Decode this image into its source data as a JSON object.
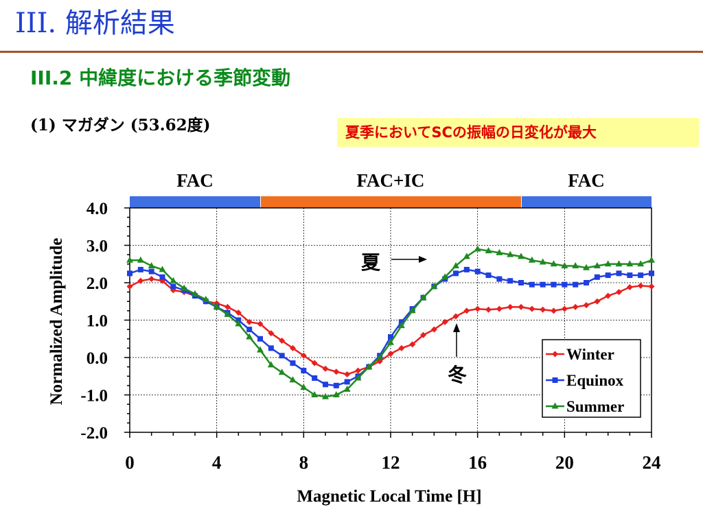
{
  "slide": {
    "title": "III. 解析結果",
    "section": "III.2 中緯度における季節変動",
    "subtitle": "(1) マガダン (53.62度)",
    "callout": "夏季においてSCの振幅の日変化が最大"
  },
  "colors": {
    "title": "#1f3fd0",
    "section": "#0a8a1a",
    "rule": "#a0522d",
    "callout_bg": "#ffff99",
    "callout_text": "#e00000",
    "fac_bar": "#3f6fe0",
    "fac_ic_bar": "#f07020"
  },
  "chart_data": {
    "type": "line",
    "xlabel": "Magnetic Local Time [H]",
    "ylabel": "Normalized Amplitude",
    "xlim": [
      0,
      24
    ],
    "ylim": [
      -2.0,
      4.0
    ],
    "xticks": [
      "0",
      "4",
      "8",
      "12",
      "16",
      "20",
      "24"
    ],
    "yticks": [
      "-2.0",
      "-1.0",
      "0.0",
      "1.0",
      "2.0",
      "3.0",
      "4.0"
    ],
    "grid": true,
    "legend_position": "bottom-right",
    "regions": [
      {
        "label": "FAC",
        "from": 0,
        "to": 6,
        "color": "#3f6fe0"
      },
      {
        "label": "FAC+IC",
        "from": 6,
        "to": 18,
        "color": "#f07020"
      },
      {
        "label": "FAC",
        "from": 18,
        "to": 24,
        "color": "#3f6fe0"
      }
    ],
    "annotations": [
      {
        "text": "夏",
        "series": "Summer",
        "arrow": "right"
      },
      {
        "text": "冬",
        "series": "Winter",
        "arrow": "up"
      }
    ],
    "x": [
      0,
      0.5,
      1,
      1.5,
      2,
      2.5,
      3,
      3.5,
      4,
      4.5,
      5,
      5.5,
      6,
      6.5,
      7,
      7.5,
      8,
      8.5,
      9,
      9.5,
      10,
      10.5,
      11,
      11.5,
      12,
      12.5,
      13,
      13.5,
      14,
      14.5,
      15,
      15.5,
      16,
      16.5,
      17,
      17.5,
      18,
      18.5,
      19,
      19.5,
      20,
      20.5,
      21,
      21.5,
      22,
      22.5,
      23,
      23.5,
      24
    ],
    "series": [
      {
        "name": "Winter",
        "color": "#e82020",
        "marker": "diamond",
        "values": [
          1.9,
          2.05,
          2.1,
          2.05,
          1.8,
          1.75,
          1.65,
          1.5,
          1.45,
          1.35,
          1.2,
          0.95,
          0.9,
          0.65,
          0.45,
          0.25,
          0.05,
          -0.15,
          -0.3,
          -0.38,
          -0.45,
          -0.35,
          -0.25,
          -0.1,
          0.1,
          0.25,
          0.35,
          0.6,
          0.75,
          0.95,
          1.1,
          1.25,
          1.3,
          1.28,
          1.3,
          1.35,
          1.35,
          1.3,
          1.28,
          1.25,
          1.3,
          1.35,
          1.4,
          1.5,
          1.65,
          1.75,
          1.88,
          1.92,
          1.9
        ]
      },
      {
        "name": "Equinox",
        "color": "#1f3fe0",
        "marker": "square",
        "values": [
          2.25,
          2.35,
          2.3,
          2.15,
          1.9,
          1.8,
          1.65,
          1.5,
          1.35,
          1.2,
          1.0,
          0.75,
          0.5,
          0.25,
          0.05,
          -0.15,
          -0.35,
          -0.55,
          -0.72,
          -0.75,
          -0.65,
          -0.5,
          -0.25,
          0.05,
          0.55,
          0.95,
          1.3,
          1.6,
          1.9,
          2.1,
          2.25,
          2.35,
          2.3,
          2.2,
          2.1,
          2.05,
          2.0,
          1.95,
          1.95,
          1.95,
          1.95,
          1.95,
          2.0,
          2.15,
          2.2,
          2.25,
          2.2,
          2.2,
          2.25
        ]
      },
      {
        "name": "Summer",
        "color": "#208a20",
        "marker": "triangle",
        "values": [
          2.6,
          2.6,
          2.45,
          2.35,
          2.05,
          1.85,
          1.7,
          1.55,
          1.35,
          1.15,
          0.9,
          0.55,
          0.2,
          -0.2,
          -0.4,
          -0.6,
          -0.8,
          -1.0,
          -1.05,
          -1.0,
          -0.85,
          -0.55,
          -0.25,
          0.0,
          0.4,
          0.85,
          1.25,
          1.6,
          1.9,
          2.15,
          2.45,
          2.7,
          2.9,
          2.85,
          2.8,
          2.75,
          2.7,
          2.6,
          2.55,
          2.5,
          2.45,
          2.45,
          2.4,
          2.45,
          2.5,
          2.5,
          2.5,
          2.5,
          2.6
        ]
      }
    ]
  }
}
